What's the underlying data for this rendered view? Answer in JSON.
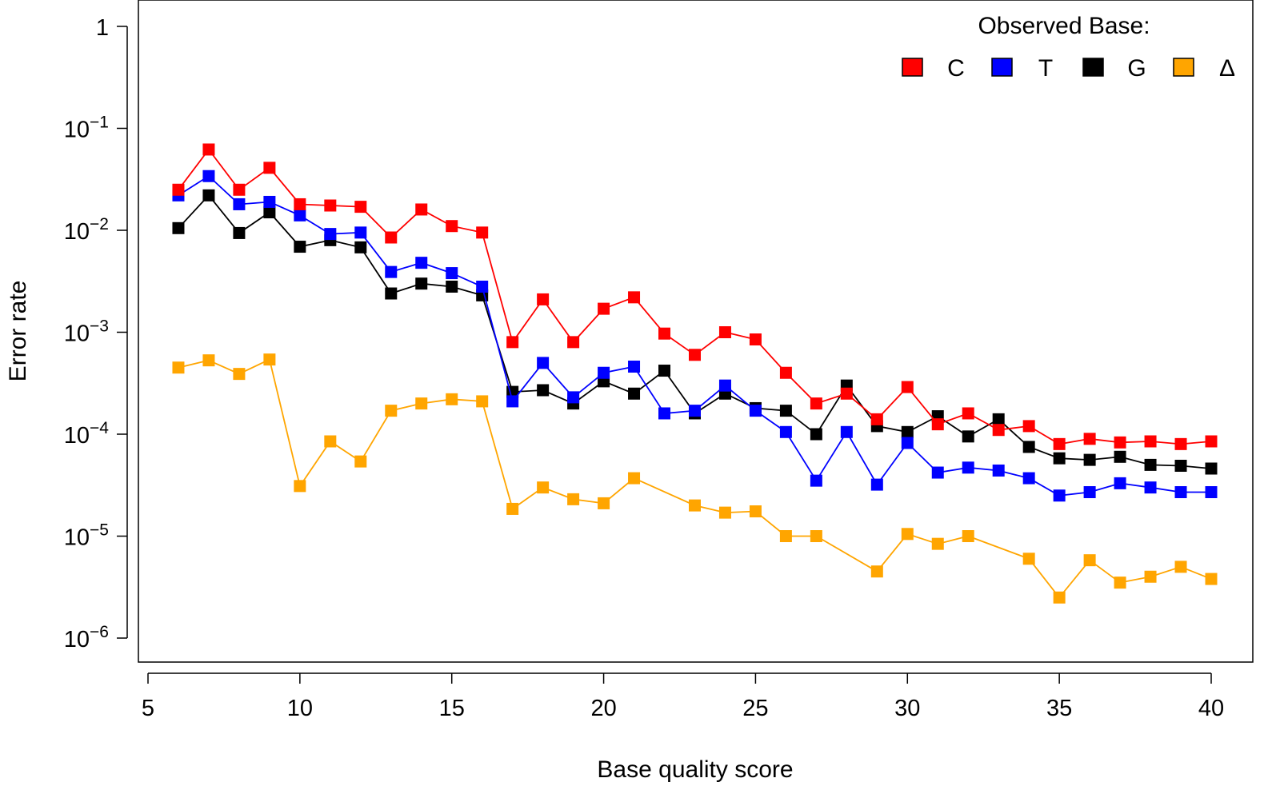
{
  "chart_data": {
    "type": "line",
    "xlabel": "Base quality score",
    "ylabel": "Error rate",
    "xlim": [
      5,
      40
    ],
    "ylim": [
      1e-06,
      1
    ],
    "y_scale": "log",
    "grid": false,
    "x_ticks": [
      {
        "value": 5,
        "label": "5"
      },
      {
        "value": 10,
        "label": "10"
      },
      {
        "value": 15,
        "label": "15"
      },
      {
        "value": 20,
        "label": "20"
      },
      {
        "value": 25,
        "label": "25"
      },
      {
        "value": 30,
        "label": "30"
      },
      {
        "value": 35,
        "label": "35"
      },
      {
        "value": 40,
        "label": "40"
      }
    ],
    "y_ticks": [
      {
        "exp": 0,
        "base": "1",
        "sup": ""
      },
      {
        "exp": -1,
        "base": "10",
        "sup": "−1"
      },
      {
        "exp": -2,
        "base": "10",
        "sup": "−2"
      },
      {
        "exp": -3,
        "base": "10",
        "sup": "−3"
      },
      {
        "exp": -4,
        "base": "10",
        "sup": "−4"
      },
      {
        "exp": -5,
        "base": "10",
        "sup": "−5"
      },
      {
        "exp": -6,
        "base": "10",
        "sup": "−6"
      }
    ],
    "legend": {
      "title": "Observed Base:",
      "position": "top-right",
      "orientation": "horizontal"
    },
    "x": [
      6,
      7,
      8,
      9,
      10,
      11,
      12,
      13,
      14,
      15,
      16,
      17,
      18,
      19,
      20,
      21,
      22,
      23,
      24,
      25,
      26,
      27,
      28,
      29,
      30,
      31,
      32,
      33,
      34,
      35,
      36,
      37,
      38,
      39,
      40
    ],
    "series": [
      {
        "name": "C",
        "color": "#ff0000",
        "values": [
          0.025,
          0.062,
          0.025,
          0.041,
          0.018,
          0.0175,
          0.017,
          0.0085,
          0.016,
          0.011,
          0.0095,
          0.0008,
          0.0021,
          0.0008,
          0.0017,
          0.0022,
          0.00097,
          0.0006,
          0.001,
          0.00085,
          0.0004,
          0.0002,
          0.00025,
          0.00014,
          0.00029,
          0.000125,
          0.00016,
          0.00011,
          0.00012,
          8e-05,
          9e-05,
          8.3e-05,
          8.5e-05,
          8e-05,
          8.5e-05
        ]
      },
      {
        "name": "T",
        "color": "#0000ff",
        "values": [
          0.022,
          0.034,
          0.018,
          0.019,
          0.014,
          0.0092,
          0.0095,
          0.0039,
          0.0048,
          0.0038,
          0.0028,
          0.00021,
          0.0005,
          0.00023,
          0.0004,
          0.00046,
          0.00016,
          0.00017,
          0.0003,
          0.00017,
          0.000105,
          3.5e-05,
          0.000105,
          3.2e-05,
          8.2e-05,
          4.2e-05,
          4.7e-05,
          4.4e-05,
          3.7e-05,
          2.5e-05,
          2.7e-05,
          3.3e-05,
          3e-05,
          2.7e-05,
          2.7e-05
        ]
      },
      {
        "name": "G",
        "color": "#000000",
        "values": [
          0.0105,
          0.022,
          0.0094,
          0.015,
          0.0069,
          0.008,
          0.0068,
          0.0024,
          0.003,
          0.0028,
          0.0023,
          0.00026,
          0.00027,
          0.0002,
          0.00033,
          0.00025,
          0.00042,
          0.00016,
          0.00025,
          0.00018,
          0.00017,
          0.0001,
          0.0003,
          0.00012,
          0.000105,
          0.00015,
          9.5e-05,
          0.00014,
          7.5e-05,
          5.8e-05,
          5.6e-05,
          6e-05,
          5e-05,
          4.9e-05,
          4.6e-05
        ]
      },
      {
        "name": "Δ",
        "color": "#ffa500",
        "values": [
          0.00045,
          0.00053,
          0.00039,
          0.00054,
          3.1e-05,
          8.5e-05,
          5.4e-05,
          0.00017,
          0.0002,
          0.00022,
          0.00021,
          1.85e-05,
          3e-05,
          2.3e-05,
          2.1e-05,
          3.7e-05,
          null,
          2e-05,
          1.7e-05,
          1.75e-05,
          1e-05,
          1e-05,
          null,
          4.5e-06,
          1.05e-05,
          8.4e-06,
          1e-05,
          null,
          6e-06,
          2.5e-06,
          5.8e-06,
          3.5e-06,
          4e-06,
          5e-06,
          3.8e-06
        ]
      }
    ]
  }
}
